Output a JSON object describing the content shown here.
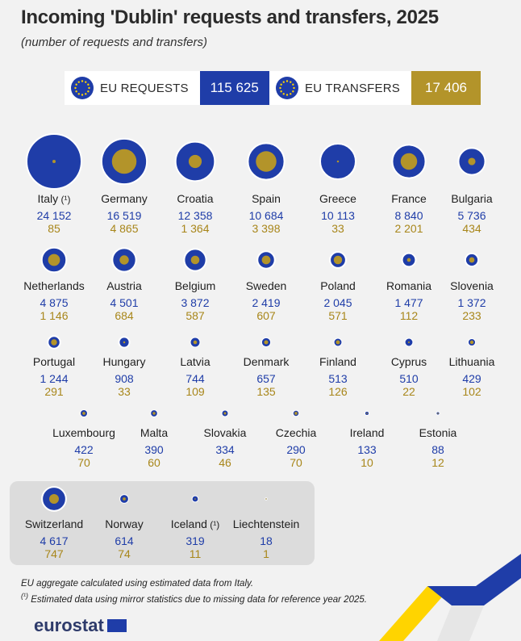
{
  "title": "Incoming 'Dublin' requests and transfers, 2025",
  "subtitle": "(number of requests and transfers)",
  "kpis": {
    "requests_label": "EU REQUESTS",
    "requests_value": "115 625",
    "transfers_label": "EU TRANSFERS",
    "transfers_value": "17 406"
  },
  "colors": {
    "requests": "#1f3da8",
    "transfers": "#b3942a",
    "background": "#f2f2f2"
  },
  "chart_data": {
    "type": "bubble",
    "title": "Incoming 'Dublin' requests and transfers, 2025",
    "series": [
      {
        "name": "EU REQUESTS"
      },
      {
        "name": "EU TRANSFERS"
      }
    ],
    "countries": [
      {
        "name": "Italy",
        "sup": "(¹)",
        "requests": 24152,
        "transfers": 85,
        "requests_label": "24 152",
        "transfers_label": "85"
      },
      {
        "name": "Germany",
        "sup": "",
        "requests": 16519,
        "transfers": 4865,
        "requests_label": "16 519",
        "transfers_label": "4 865"
      },
      {
        "name": "Croatia",
        "sup": "",
        "requests": 12358,
        "transfers": 1364,
        "requests_label": "12 358",
        "transfers_label": "1 364"
      },
      {
        "name": "Spain",
        "sup": "",
        "requests": 10684,
        "transfers": 3398,
        "requests_label": "10 684",
        "transfers_label": "3 398"
      },
      {
        "name": "Greece",
        "sup": "",
        "requests": 10113,
        "transfers": 33,
        "requests_label": "10 113",
        "transfers_label": "33"
      },
      {
        "name": "France",
        "sup": "",
        "requests": 8840,
        "transfers": 2201,
        "requests_label": "8 840",
        "transfers_label": "2 201"
      },
      {
        "name": "Bulgaria",
        "sup": "",
        "requests": 5736,
        "transfers": 434,
        "requests_label": "5 736",
        "transfers_label": "434"
      },
      {
        "name": "Netherlands",
        "sup": "",
        "requests": 4875,
        "transfers": 1146,
        "requests_label": "4 875",
        "transfers_label": "1 146"
      },
      {
        "name": "Austria",
        "sup": "",
        "requests": 4501,
        "transfers": 684,
        "requests_label": "4 501",
        "transfers_label": "684"
      },
      {
        "name": "Belgium",
        "sup": "",
        "requests": 3872,
        "transfers": 587,
        "requests_label": "3 872",
        "transfers_label": "587"
      },
      {
        "name": "Sweden",
        "sup": "",
        "requests": 2419,
        "transfers": 607,
        "requests_label": "2 419",
        "transfers_label": "607"
      },
      {
        "name": "Poland",
        "sup": "",
        "requests": 2045,
        "transfers": 571,
        "requests_label": "2 045",
        "transfers_label": "571"
      },
      {
        "name": "Romania",
        "sup": "",
        "requests": 1477,
        "transfers": 112,
        "requests_label": "1 477",
        "transfers_label": "112"
      },
      {
        "name": "Slovenia",
        "sup": "",
        "requests": 1372,
        "transfers": 233,
        "requests_label": "1 372",
        "transfers_label": "233"
      },
      {
        "name": "Portugal",
        "sup": "",
        "requests": 1244,
        "transfers": 291,
        "requests_label": "1 244",
        "transfers_label": "291"
      },
      {
        "name": "Hungary",
        "sup": "",
        "requests": 908,
        "transfers": 33,
        "requests_label": "908",
        "transfers_label": "33"
      },
      {
        "name": "Latvia",
        "sup": "",
        "requests": 744,
        "transfers": 109,
        "requests_label": "744",
        "transfers_label": "109"
      },
      {
        "name": "Denmark",
        "sup": "",
        "requests": 657,
        "transfers": 135,
        "requests_label": "657",
        "transfers_label": "135"
      },
      {
        "name": "Finland",
        "sup": "",
        "requests": 513,
        "transfers": 126,
        "requests_label": "513",
        "transfers_label": "126"
      },
      {
        "name": "Cyprus",
        "sup": "",
        "requests": 510,
        "transfers": 22,
        "requests_label": "510",
        "transfers_label": "22"
      },
      {
        "name": "Lithuania",
        "sup": "",
        "requests": 429,
        "transfers": 102,
        "requests_label": "429",
        "transfers_label": "102"
      },
      {
        "name": "Luxembourg",
        "sup": "",
        "requests": 422,
        "transfers": 70,
        "requests_label": "422",
        "transfers_label": "70"
      },
      {
        "name": "Malta",
        "sup": "",
        "requests": 390,
        "transfers": 60,
        "requests_label": "390",
        "transfers_label": "60"
      },
      {
        "name": "Slovakia",
        "sup": "",
        "requests": 334,
        "transfers": 46,
        "requests_label": "334",
        "transfers_label": "46"
      },
      {
        "name": "Czechia",
        "sup": "",
        "requests": 290,
        "transfers": 70,
        "requests_label": "290",
        "transfers_label": "70"
      },
      {
        "name": "Ireland",
        "sup": "",
        "requests": 133,
        "transfers": 10,
        "requests_label": "133",
        "transfers_label": "10"
      },
      {
        "name": "Estonia",
        "sup": "",
        "requests": 88,
        "transfers": 12,
        "requests_label": "88",
        "transfers_label": "12"
      },
      {
        "name": "Switzerland",
        "sup": "",
        "requests": 4617,
        "transfers": 747,
        "requests_label": "4 617",
        "transfers_label": "747"
      },
      {
        "name": "Norway",
        "sup": "",
        "requests": 614,
        "transfers": 74,
        "requests_label": "614",
        "transfers_label": "74"
      },
      {
        "name": "Iceland",
        "sup": "(¹)",
        "requests": 319,
        "transfers": 11,
        "requests_label": "319",
        "transfers_label": "11"
      },
      {
        "name": "Liechtenstein",
        "sup": "",
        "requests": 18,
        "transfers": 1,
        "requests_label": "18",
        "transfers_label": "1"
      }
    ]
  },
  "notes": {
    "line1": "EU aggregate calculated using estimated data from Italy.",
    "line2_sup": "(¹)",
    "line2": " Estimated data using mirror statistics due to missing data for reference year 2025."
  },
  "logo": {
    "text": "eurostat"
  }
}
